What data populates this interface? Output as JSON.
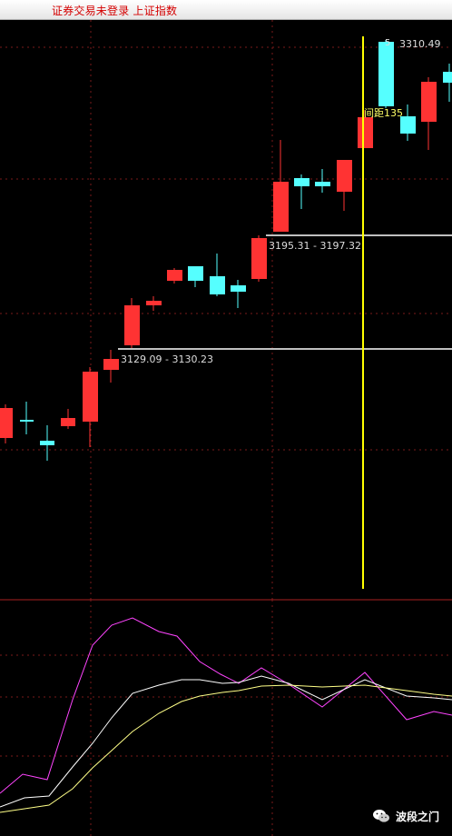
{
  "window": {
    "title": "证券交易未登录  上证指数"
  },
  "colors": {
    "up": "#ff3333",
    "down": "#55ffff",
    "cursor": "#ffff00",
    "level_line": "#c0c0c0",
    "grid": "#7a1a1a",
    "label": "#dddddd",
    "range_label": "#ffff66"
  },
  "price_levels": [
    {
      "label": "3195.31 - 3197.32"
    },
    {
      "label": "3129.09 - 3130.23"
    }
  ],
  "annotations": {
    "high_label": "3310.49",
    "high_marker": "5",
    "range_label": "间距135"
  },
  "candles": [
    {
      "dir": "up"
    },
    {
      "dir": "down"
    },
    {
      "dir": "down"
    },
    {
      "dir": "up"
    },
    {
      "dir": "up"
    },
    {
      "dir": "up"
    },
    {
      "dir": "up"
    },
    {
      "dir": "up"
    },
    {
      "dir": "up"
    },
    {
      "dir": "down"
    },
    {
      "dir": "down"
    },
    {
      "dir": "down"
    },
    {
      "dir": "up"
    },
    {
      "dir": "up"
    },
    {
      "dir": "down"
    },
    {
      "dir": "down"
    },
    {
      "dir": "up"
    },
    {
      "dir": "up"
    },
    {
      "dir": "down"
    },
    {
      "dir": "down"
    },
    {
      "dir": "up"
    },
    {
      "dir": "down"
    }
  ],
  "indicator": {
    "series": [
      {
        "color": "#ff44ff"
      },
      {
        "color": "#ffffff"
      },
      {
        "color": "#ffff88"
      }
    ]
  },
  "watermark": {
    "icon": "wechat-icon",
    "text": "波段之门"
  }
}
